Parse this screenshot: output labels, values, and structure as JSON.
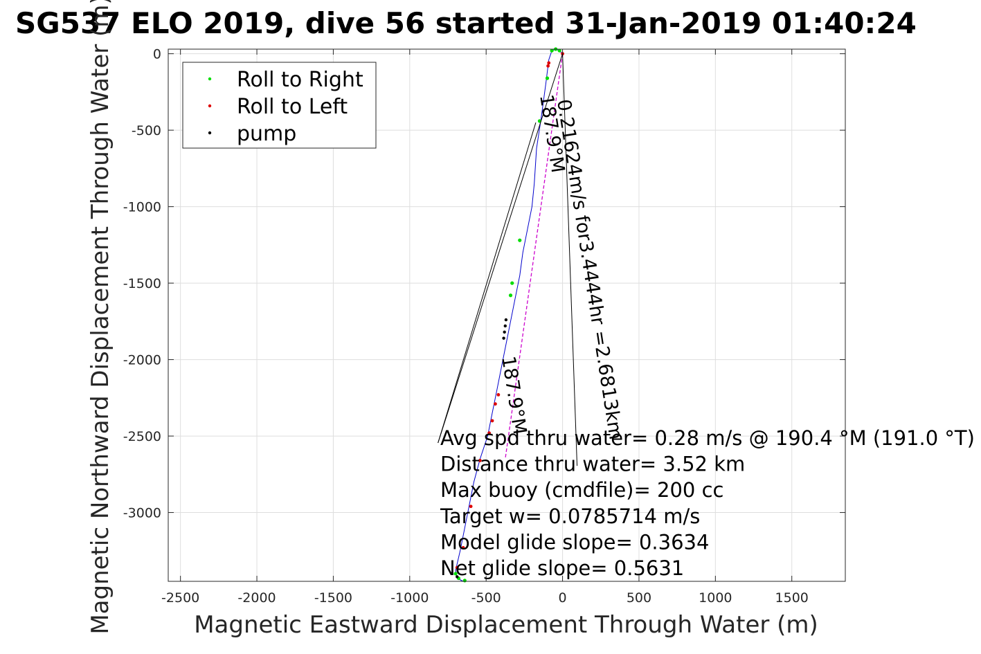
{
  "chart_data": {
    "type": "scatter",
    "title": "SG537 ELO 2019, dive 56 started 31-Jan-2019 01:40:24",
    "xlabel": "Magnetic Eastward Displacement Through Water (m)",
    "ylabel": "Magnetic Northward Displacement Through Water (m)",
    "xlim": [
      -2580,
      1850
    ],
    "ylim": [
      -3450,
      30
    ],
    "xticks": [
      -2500,
      -2000,
      -1500,
      -1000,
      -500,
      0,
      500,
      1000,
      1500
    ],
    "xtick_labels": [
      "-2500",
      "-2000",
      "-1500",
      "-1000",
      "-500",
      "0",
      "500",
      "1000",
      "1500"
    ],
    "yticks": [
      0,
      -500,
      -1000,
      -1500,
      -2000,
      -2500,
      -3000
    ],
    "ytick_labels": [
      "0",
      "-500",
      "-1000",
      "-1500",
      "-2000",
      "-2500",
      "-3000"
    ],
    "grid": true,
    "legend_position": "top-left",
    "legend": [
      {
        "name": "Roll to Right",
        "color": "#00dd00"
      },
      {
        "name": "Roll to Left",
        "color": "#dd0000"
      },
      {
        "name": "pump",
        "color": "#000000"
      }
    ],
    "track_color": "#0000cc",
    "track": [
      [
        0,
        0
      ],
      [
        -20,
        20
      ],
      [
        -45,
        30
      ],
      [
        -70,
        20
      ],
      [
        -90,
        -40
      ],
      [
        -110,
        -200
      ],
      [
        -140,
        -420
      ],
      [
        -170,
        -620
      ],
      [
        -185,
        -850
      ],
      [
        -200,
        -1000
      ],
      [
        -230,
        -1150
      ],
      [
        -260,
        -1300
      ],
      [
        -280,
        -1450
      ],
      [
        -310,
        -1600
      ],
      [
        -340,
        -1750
      ],
      [
        -370,
        -1900
      ],
      [
        -400,
        -2050
      ],
      [
        -430,
        -2200
      ],
      [
        -460,
        -2350
      ],
      [
        -490,
        -2500
      ],
      [
        -540,
        -2650
      ],
      [
        -580,
        -2800
      ],
      [
        -610,
        -2950
      ],
      [
        -640,
        -3100
      ],
      [
        -670,
        -3250
      ],
      [
        -700,
        -3380
      ],
      [
        -690,
        -3430
      ],
      [
        -650,
        -3450
      ]
    ],
    "roll_right_points": [
      [
        -20,
        20
      ],
      [
        -45,
        30
      ],
      [
        -70,
        20
      ],
      [
        -100,
        -160
      ],
      [
        -150,
        -440
      ],
      [
        -280,
        -1220
      ],
      [
        -330,
        -1500
      ],
      [
        -340,
        -1580
      ],
      [
        -700,
        -3400
      ],
      [
        -680,
        -3430
      ],
      [
        -640,
        -3445
      ]
    ],
    "roll_left_points": [
      [
        0,
        0
      ],
      [
        -90,
        -60
      ],
      [
        -95,
        -80
      ],
      [
        -420,
        -2230
      ],
      [
        -440,
        -2290
      ],
      [
        -460,
        -2400
      ],
      [
        -480,
        -2480
      ],
      [
        -540,
        -2660
      ],
      [
        -600,
        -2960
      ],
      [
        -650,
        -3230
      ],
      [
        -690,
        -3360
      ]
    ],
    "pump_points": [
      [
        -370,
        -1740
      ],
      [
        -375,
        -1780
      ],
      [
        -380,
        -1820
      ],
      [
        -385,
        -1860
      ],
      [
        -690,
        -3420
      ]
    ],
    "magenta_line": [
      [
        0,
        0
      ],
      [
        -375,
        -2650
      ]
    ],
    "annotations": {
      "current_speed": "0.21624m/s for3.4444hr =2.6813km",
      "current_heading": "187.9°M",
      "line_heading": "187.9°M",
      "stats": [
        "Avg spd thru water=  0.28 m/s @ 190.4 °M (191.0 °T)",
        "Distance thru water=  3.52 km",
        "Max buoy (cmdfile)= 200 cc",
        "Target w= 0.0785714 m/s",
        "Model glide slope= 0.3634",
        "Net glide slope= 0.5631"
      ]
    }
  }
}
